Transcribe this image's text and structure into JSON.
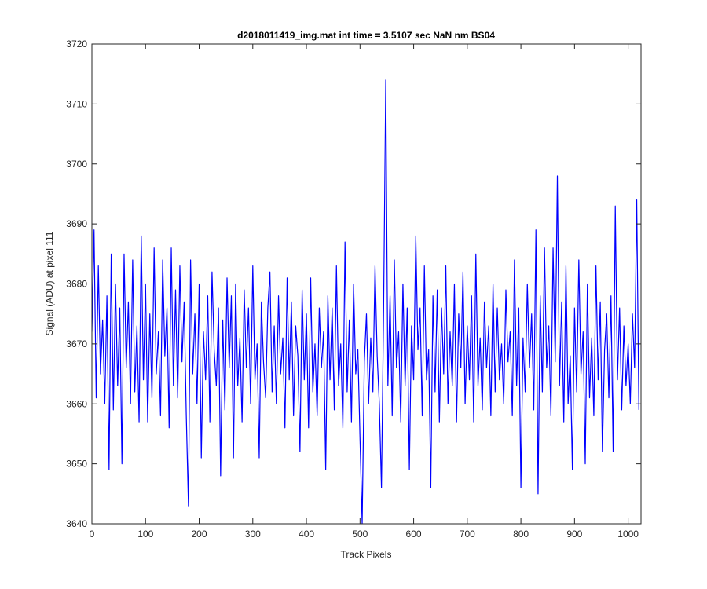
{
  "chart_data": {
    "type": "line",
    "title": "d2018011419_img.mat int time = 3.5107 sec  NaN nm BS04",
    "xlabel": "Track Pixels",
    "ylabel": "Signal (ADU) at pixel 111",
    "xlim": [
      0,
      1024
    ],
    "ylim": [
      3640,
      3720
    ],
    "xticks": [
      0,
      100,
      200,
      300,
      400,
      500,
      600,
      700,
      800,
      900,
      1000
    ],
    "yticks": [
      3640,
      3650,
      3660,
      3670,
      3680,
      3690,
      3700,
      3710,
      3720
    ],
    "grid": false,
    "series": [
      {
        "color": "#0000ff",
        "x": [
          0,
          4,
          8,
          12,
          16,
          20,
          24,
          28,
          32,
          36,
          40,
          44,
          48,
          52,
          56,
          60,
          64,
          68,
          72,
          76,
          80,
          84,
          88,
          92,
          96,
          100,
          104,
          108,
          112,
          116,
          120,
          124,
          128,
          132,
          136,
          140,
          144,
          148,
          152,
          156,
          160,
          164,
          168,
          172,
          176,
          180,
          184,
          188,
          192,
          196,
          200,
          204,
          208,
          212,
          216,
          220,
          224,
          228,
          232,
          236,
          240,
          244,
          248,
          252,
          256,
          260,
          264,
          268,
          272,
          276,
          280,
          284,
          288,
          292,
          296,
          300,
          304,
          308,
          312,
          316,
          320,
          324,
          328,
          332,
          336,
          340,
          344,
          348,
          352,
          356,
          360,
          364,
          368,
          372,
          376,
          380,
          384,
          388,
          392,
          396,
          400,
          404,
          408,
          412,
          416,
          420,
          424,
          428,
          432,
          436,
          440,
          444,
          448,
          452,
          456,
          460,
          464,
          468,
          472,
          476,
          480,
          484,
          488,
          492,
          496,
          500,
          504,
          508,
          512,
          516,
          520,
          524,
          528,
          532,
          536,
          540,
          544,
          548,
          552,
          556,
          560,
          564,
          568,
          572,
          576,
          580,
          584,
          588,
          592,
          596,
          600,
          604,
          608,
          612,
          616,
          620,
          624,
          628,
          632,
          636,
          640,
          644,
          648,
          652,
          656,
          660,
          664,
          668,
          672,
          676,
          680,
          684,
          688,
          692,
          696,
          700,
          704,
          708,
          712,
          716,
          720,
          724,
          728,
          732,
          736,
          740,
          744,
          748,
          752,
          756,
          760,
          764,
          768,
          772,
          776,
          780,
          784,
          788,
          792,
          796,
          800,
          804,
          808,
          812,
          816,
          820,
          824,
          828,
          832,
          836,
          840,
          844,
          848,
          852,
          856,
          860,
          864,
          868,
          872,
          876,
          880,
          884,
          888,
          892,
          896,
          900,
          904,
          908,
          912,
          916,
          920,
          924,
          928,
          932,
          936,
          940,
          944,
          948,
          952,
          956,
          960,
          964,
          968,
          972,
          976,
          980,
          984,
          988,
          992,
          996,
          1000,
          1004,
          1008,
          1012,
          1016,
          1020
        ],
        "values": [
          3672,
          3689,
          3661,
          3683,
          3665,
          3674,
          3660,
          3678,
          3649,
          3685,
          3659,
          3680,
          3663,
          3676,
          3650,
          3685,
          3666,
          3677,
          3660,
          3684,
          3662,
          3673,
          3657,
          3688,
          3664,
          3680,
          3657,
          3675,
          3661,
          3686,
          3665,
          3672,
          3658,
          3684,
          3668,
          3676,
          3656,
          3686,
          3663,
          3679,
          3661,
          3683,
          3667,
          3677,
          3658,
          3643,
          3684,
          3665,
          3675,
          3660,
          3680,
          3651,
          3672,
          3664,
          3678,
          3657,
          3682,
          3669,
          3663,
          3676,
          3648,
          3674,
          3659,
          3681,
          3666,
          3678,
          3651,
          3680,
          3663,
          3671,
          3657,
          3679,
          3666,
          3676,
          3660,
          3683,
          3664,
          3670,
          3651,
          3677,
          3667,
          3661,
          3676,
          3682,
          3662,
          3673,
          3660,
          3678,
          3665,
          3671,
          3656,
          3681,
          3664,
          3677,
          3658,
          3673,
          3668,
          3652,
          3679,
          3664,
          3675,
          3656,
          3681,
          3662,
          3670,
          3658,
          3676,
          3666,
          3672,
          3649,
          3678,
          3664,
          3676,
          3659,
          3683,
          3663,
          3670,
          3656,
          3687,
          3662,
          3674,
          3657,
          3680,
          3665,
          3669,
          3654,
          3640,
          3667,
          3675,
          3660,
          3671,
          3662,
          3683,
          3668,
          3660,
          3646,
          3676,
          3714,
          3663,
          3678,
          3658,
          3684,
          3666,
          3672,
          3657,
          3680,
          3663,
          3676,
          3649,
          3673,
          3664,
          3688,
          3669,
          3676,
          3658,
          3683,
          3664,
          3669,
          3646,
          3678,
          3662,
          3679,
          3657,
          3676,
          3665,
          3683,
          3660,
          3672,
          3663,
          3680,
          3657,
          3675,
          3666,
          3682,
          3660,
          3673,
          3664,
          3678,
          3657,
          3685,
          3663,
          3671,
          3659,
          3677,
          3666,
          3673,
          3658,
          3680,
          3662,
          3676,
          3664,
          3670,
          3660,
          3679,
          3667,
          3672,
          3658,
          3684,
          3663,
          3676,
          3646,
          3671,
          3662,
          3680,
          3666,
          3675,
          3659,
          3689,
          3645,
          3678,
          3662,
          3686,
          3666,
          3673,
          3658,
          3686,
          3667,
          3698,
          3663,
          3677,
          3657,
          3683,
          3660,
          3668,
          3649,
          3676,
          3662,
          3684,
          3665,
          3672,
          3650,
          3680,
          3661,
          3671,
          3658,
          3683,
          3664,
          3677,
          3652,
          3669,
          3675,
          3661,
          3678,
          3652,
          3693,
          3664,
          3676,
          3659,
          3673,
          3663,
          3670,
          3660,
          3675,
          3666,
          3694,
          3659
        ]
      }
    ]
  }
}
